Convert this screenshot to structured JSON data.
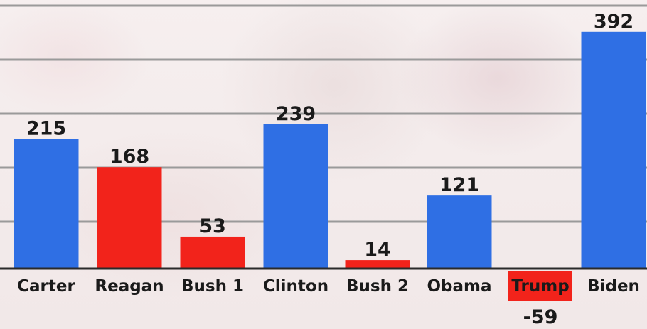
{
  "chart_data": {
    "type": "bar",
    "categories": [
      "Carter",
      "Reagan",
      "Bush 1",
      "Clinton",
      "Bush 2",
      "Obama",
      "Trump",
      "Biden"
    ],
    "values": [
      215,
      168,
      53,
      239,
      14,
      121,
      -59,
      392
    ],
    "value_labels": [
      "215",
      "168",
      "53",
      "239",
      "14",
      "121",
      "-59",
      "392"
    ],
    "title": "",
    "xlabel": "",
    "ylabel": "",
    "grid": true,
    "legend": "none",
    "colors": {
      "blue": "#2f6fe4",
      "red": "#f2231b",
      "grid": "#9a9a9a",
      "baseline": "#2a2a2a"
    },
    "bar_colors": [
      "blue",
      "red",
      "red",
      "blue",
      "red",
      "blue",
      "red",
      "blue"
    ],
    "highlighted_category": "Trump"
  }
}
